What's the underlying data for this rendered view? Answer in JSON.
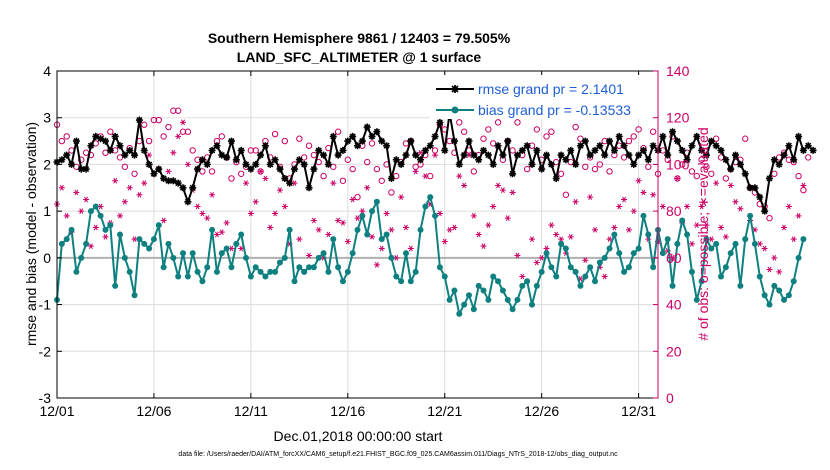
{
  "chart_data": {
    "type": "line",
    "title_line1": "Southern Hemisphere 9861 / 12403 = 79.505%",
    "title_line2": "LAND_SFC_ALTIMETER @ 1 surface",
    "xlabel": "Dec.01,2018 00:00:00 start",
    "ylabel_left": "rmse and bias (model - observation)",
    "ylabel_right": "# of obs: o=possible; ∗=evaluated",
    "footnote": "data file: /Users/raeder/DAI/ATM_forcXX/CAM6_setup/f.e21.FHIST_BGC.f09_025.CAM6assim.011/Diags_NTrS_2018-12/obs_diag_output.nc",
    "x_range": [
      1,
      32
    ],
    "ylim_left": [
      -3,
      4
    ],
    "ylim_right": [
      0,
      140
    ],
    "x_tick_values": [
      1,
      6,
      11,
      16,
      21,
      26,
      31
    ],
    "x_tick_labels": [
      "12/01",
      "12/06",
      "12/11",
      "12/16",
      "12/21",
      "12/26",
      "12/31"
    ],
    "y_left_ticks": [
      -3,
      -2,
      -1,
      0,
      1,
      2,
      3,
      4
    ],
    "y_left_tick_labels": [
      "-3",
      "-2",
      "-1",
      "0",
      "1",
      "2",
      "3",
      "4"
    ],
    "y_right_ticks": [
      0,
      20,
      40,
      60,
      80,
      100,
      120,
      140
    ],
    "y_right_tick_labels": [
      "0",
      "20",
      "40",
      "60",
      "80",
      "100",
      "120",
      "140"
    ],
    "legend": {
      "position": "top-right",
      "entries": [
        {
          "label": "rmse grand pr = 2.1401",
          "color": "#000000",
          "marker": "star"
        },
        {
          "label": "bias grand pr = -0.13533",
          "color": "#0f8080",
          "marker": "circle"
        }
      ]
    },
    "colors": {
      "rmse": "#000000",
      "bias": "#0f8080",
      "obs": "#cc0066",
      "zero_line": "#b0b0b0",
      "grid": "#dddddd"
    },
    "start_day": 1.0,
    "step_days": 0.25,
    "series": [
      {
        "name": "rmse",
        "axis": "left",
        "values": [
          2.05,
          2.1,
          2.2,
          2.0,
          2.5,
          1.9,
          1.9,
          2.4,
          2.6,
          2.55,
          2.5,
          2.3,
          2.6,
          2.4,
          2.2,
          2.3,
          2.2,
          2.95,
          2.3,
          2.0,
          1.8,
          1.9,
          1.7,
          1.65,
          1.65,
          1.6,
          1.5,
          1.2,
          1.5,
          1.9,
          2.1,
          2.0,
          2.3,
          2.4,
          2.2,
          2.15,
          2.5,
          2.1,
          2.3,
          2.0,
          1.9,
          2.0,
          2.2,
          2.4,
          2.0,
          2.1,
          1.9,
          1.7,
          1.6,
          1.9,
          2.1,
          2.0,
          1.5,
          1.9,
          2.3,
          2.2,
          2.0,
          2.6,
          2.2,
          2.3,
          2.5,
          2.6,
          2.4,
          2.5,
          2.8,
          2.6,
          2.7,
          2.5,
          2.4,
          1.7,
          2.1,
          2.0,
          2.2,
          2.5,
          2.2,
          2.1,
          2.3,
          2.4,
          2.6,
          2.9,
          2.3,
          3.1,
          2.5,
          2.0,
          2.2,
          2.5,
          2.2,
          2.1,
          2.3,
          2.2,
          2.0,
          2.4,
          2.2,
          2.5,
          1.8,
          2.2,
          2.3,
          2.4,
          2.0,
          2.3,
          1.9,
          2.2,
          2.0,
          1.7,
          2.2,
          2.1,
          2.3,
          2.0,
          2.4,
          2.5,
          2.2,
          2.3,
          2.4,
          2.2,
          2.5,
          2.3,
          2.6,
          2.4,
          2.2,
          2.0,
          2.2,
          2.3,
          2.1,
          2.4,
          2.3,
          2.6,
          2.2,
          2.7,
          2.5,
          2.3,
          2.1,
          2.4,
          2.6,
          2.3,
          2.2,
          2.5,
          2.4,
          2.3,
          2.1,
          1.9,
          2.2,
          2.0,
          1.8,
          1.5,
          1.5,
          1.3,
          1.0,
          1.7,
          2.1,
          2.0,
          2.2,
          2.4,
          2.1,
          2.6,
          2.3,
          2.4,
          2.3
        ]
      },
      {
        "name": "bias",
        "axis": "left",
        "values": [
          -0.9,
          0.3,
          0.4,
          0.6,
          -0.3,
          0.0,
          0.3,
          1.0,
          1.1,
          0.9,
          0.6,
          0.7,
          -0.6,
          0.5,
          0.0,
          -0.3,
          -0.8,
          0.4,
          0.3,
          0.2,
          0.4,
          0.7,
          -0.2,
          0.3,
          0.0,
          -0.4,
          0.1,
          -0.4,
          0.1,
          -0.3,
          -0.5,
          -0.2,
          0.6,
          -0.3,
          0.1,
          0.2,
          -0.2,
          0.3,
          0.5,
          0.0,
          -0.4,
          -0.2,
          -0.3,
          -0.4,
          -0.3,
          -0.3,
          -0.1,
          0.0,
          0.6,
          -0.5,
          -0.2,
          -0.3,
          -0.2,
          -0.2,
          0.0,
          0.1,
          -0.3,
          0.4,
          -0.2,
          -0.5,
          -0.3,
          0.1,
          0.6,
          0.9,
          0.5,
          1.0,
          1.2,
          0.4,
          0.5,
          0.0,
          -0.4,
          -0.5,
          0.1,
          -0.5,
          -0.3,
          0.6,
          1.1,
          1.3,
          0.9,
          -0.2,
          -0.4,
          -0.9,
          -0.7,
          -1.2,
          -1.0,
          -0.8,
          -1.1,
          -0.6,
          -0.7,
          -0.9,
          -0.4,
          -0.5,
          -0.7,
          -0.9,
          -1.1,
          -0.9,
          -0.6,
          -0.5,
          -1.0,
          -0.6,
          -0.3,
          0.1,
          -0.2,
          -0.4,
          0.3,
          0.2,
          -0.2,
          -0.3,
          -0.6,
          -0.4,
          -0.2,
          -0.5,
          -0.1,
          0.0,
          0.2,
          0.5,
          0.1,
          -0.3,
          -0.2,
          0.1,
          0.2,
          0.9,
          0.5,
          -0.2,
          0.6,
          0.1,
          0.4,
          -0.6,
          0.3,
          0.8,
          0.5,
          -0.3,
          -0.9,
          -0.5,
          0.4,
          0.2,
          0.3,
          -0.4,
          -0.2,
          0.1,
          0.3,
          -0.6,
          0.4,
          0.9,
          0.3,
          -0.4,
          -0.8,
          -1.0,
          -0.6,
          -0.7,
          -0.9,
          -0.8,
          -0.5,
          0.0,
          0.4
        ]
      },
      {
        "name": "obs possible",
        "axis": "right",
        "marker": "o",
        "values": [
          117,
          110,
          112,
          106,
          99,
          102,
          105,
          104,
          109,
          112,
          105,
          114,
          106,
          103,
          99,
          107,
          96,
          110,
          117,
          110,
          119,
          119,
          112,
          116,
          123,
          123,
          114,
          114,
          106,
          102,
          97,
          103,
          97,
          110,
          112,
          103,
          94,
          101,
          96,
          99,
          106,
          106,
          97,
          110,
          103,
          113,
          99,
          110,
          94,
          100,
          111,
          103,
          108,
          104,
          101,
          95,
          107,
          99,
          114,
          93,
          102,
          98,
          86,
          108,
          101,
          109,
          98,
          93,
          100,
          88,
          95,
          101,
          109,
          110,
          99,
          100,
          104,
          95,
          106,
          117,
          115,
          110,
          105,
          118,
          114,
          106,
          97,
          104,
          111,
          115,
          109,
          118,
          102,
          110,
          106,
          118,
          104,
          98,
          108,
          115,
          102,
          112,
          114,
          101,
          96,
          87,
          101,
          116,
          111,
          99,
          103,
          98,
          100,
          110,
          97,
          104,
          108,
          103,
          110,
          112,
          115,
          107,
          99,
          114,
          96,
          106,
          102,
          112,
          94,
          100,
          105,
          97,
          95,
          102,
          99,
          96,
          111,
          103,
          94,
          98,
          101,
          102,
          111,
          90,
          88,
          83,
          82,
          77,
          96,
          103,
          105,
          102,
          101,
          95,
          89,
          103
        ]
      },
      {
        "name": "obs evaluated",
        "axis": "right",
        "marker": "*",
        "values": [
          83,
          90,
          78,
          71,
          88,
          80,
          85,
          65,
          73,
          82,
          69,
          75,
          93,
          78,
          84,
          90,
          68,
          87,
          92,
          104,
          96,
          98,
          76,
          97,
          105,
          112,
          118,
          100,
          89,
          82,
          79,
          77,
          87,
          70,
          71,
          75,
          64,
          66,
          64,
          92,
          79,
          84,
          97,
          94,
          73,
          79,
          89,
          82,
          66,
          92,
          68,
          54,
          61,
          76,
          72,
          60,
          70,
          92,
          76,
          75,
          67,
          85,
          77,
          80,
          90,
          69,
          57,
          64,
          79,
          72,
          60,
          86,
          73,
          64,
          97,
          105,
          95,
          83,
          104,
          79,
          67,
          72,
          73,
          95,
          91,
          104,
          78,
          70,
          65,
          74,
          82,
          91,
          89,
          77,
          88,
          61,
          52,
          50,
          68,
          58,
          60,
          64,
          74,
          70,
          68,
          62,
          69,
          84,
          51,
          59,
          86,
          72,
          56,
          52,
          68,
          73,
          82,
          85,
          72,
          80,
          93,
          88,
          68,
          87,
          67,
          82,
          63,
          60,
          94,
          75,
          82,
          66,
          74,
          82,
          74,
          68,
          92,
          73,
          69,
          91,
          84,
          81,
          68,
          76,
          72,
          66,
          64,
          55,
          60,
          54,
          73,
          82,
          68,
          78,
          91
        ]
      }
    ]
  }
}
